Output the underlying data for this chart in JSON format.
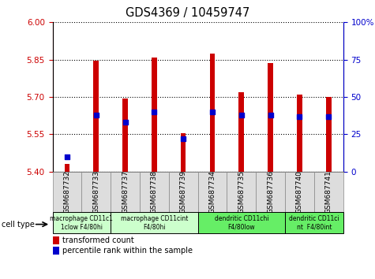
{
  "title": "GDS4369 / 10459747",
  "samples": [
    "GSM687732",
    "GSM687733",
    "GSM687737",
    "GSM687738",
    "GSM687739",
    "GSM687734",
    "GSM687735",
    "GSM687736",
    "GSM687740",
    "GSM687741"
  ],
  "transformed_counts": [
    5.43,
    5.845,
    5.695,
    5.86,
    5.555,
    5.875,
    5.72,
    5.835,
    5.71,
    5.7
  ],
  "percentile_ranks": [
    10,
    38,
    33,
    40,
    22,
    40,
    38,
    38,
    37,
    37
  ],
  "ylim": [
    5.4,
    6.0
  ],
  "ylim_right": [
    0,
    100
  ],
  "yticks_left": [
    5.4,
    5.55,
    5.7,
    5.85,
    6.0
  ],
  "yticks_right": [
    0,
    25,
    50,
    75,
    100
  ],
  "bar_color": "#cc0000",
  "dot_color": "#0000cc",
  "bar_bottom": 5.4,
  "cell_type_groups": [
    {
      "indices": [
        0,
        1
      ],
      "label": "macrophage CD11c1\n1clow F4/80hi",
      "color": "#ccffcc"
    },
    {
      "indices": [
        2,
        3,
        4
      ],
      "label": "macrophage CD11cint\nF4/80hi",
      "color": "#ccffcc"
    },
    {
      "indices": [
        5,
        6,
        7
      ],
      "label": "dendritic CD11chi\nF4/80low",
      "color": "#66ee66"
    },
    {
      "indices": [
        8,
        9
      ],
      "label": "dendritic CD11ci\nnt  F4/80int",
      "color": "#66ee66"
    }
  ],
  "legend_red_label": "transformed count",
  "legend_blue_label": "percentile rank within the sample",
  "left_axis_color": "#cc0000",
  "right_axis_color": "#0000cc",
  "cell_type_label": "cell type",
  "sample_bg_color": "#dddddd",
  "sample_border_color": "#888888"
}
